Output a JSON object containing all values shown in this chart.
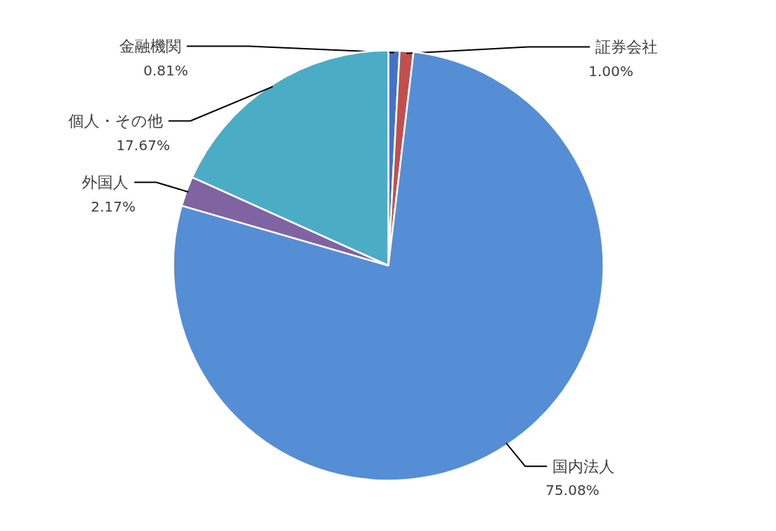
{
  "chart_data": {
    "type": "pie",
    "categories": [
      "金融機関",
      "証券会社",
      "国内法人",
      "外国人",
      "個人・その他"
    ],
    "values": [
      0.81,
      1.0,
      75.08,
      2.17,
      17.67
    ],
    "value_labels": [
      "0.81%",
      "1.00%",
      "75.08%",
      "2.17%",
      "17.67%"
    ],
    "colors": [
      "#4472c4",
      "#c0504d",
      "#558ed5",
      "#8064a2",
      "#4bacc6"
    ],
    "legend": false
  }
}
